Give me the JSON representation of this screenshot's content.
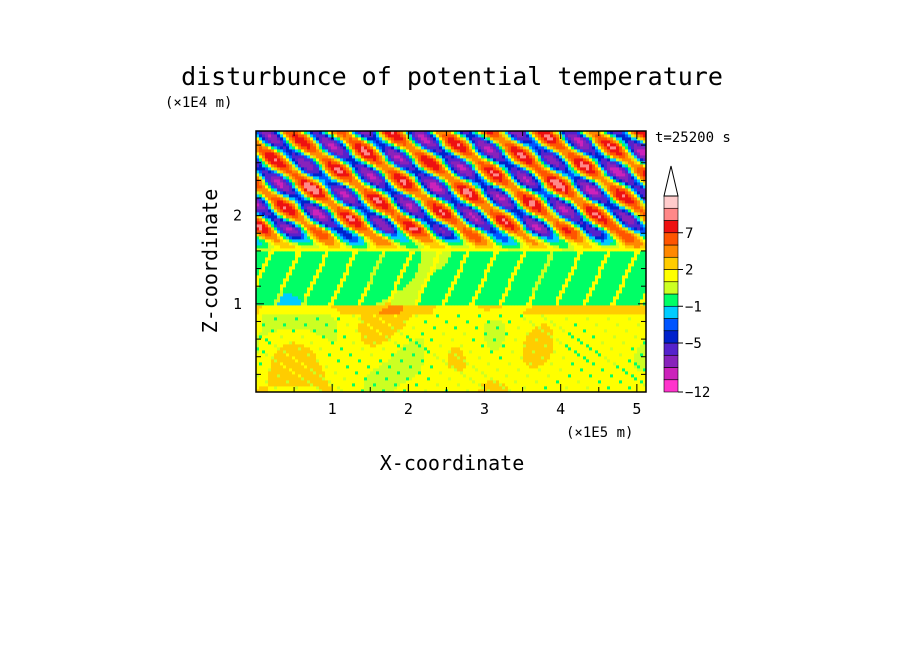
{
  "chart_data": {
    "type": "heatmap",
    "title": "disturbunce of potential temperature",
    "xlabel": "X-coordinate",
    "ylabel": "Z-coordinate",
    "x_unit": "(×1E5 m)",
    "y_unit": "(×1E4 m)",
    "time_label": "t=25200 s",
    "xlim": [
      0,
      5.12
    ],
    "ylim": [
      0,
      2.96
    ],
    "x_ticks": [
      1,
      2,
      3,
      4,
      5
    ],
    "y_ticks": [
      1,
      2
    ],
    "colorbar": {
      "levels": [
        -12,
        -11,
        -9,
        -7,
        -5,
        -4,
        -3,
        -1,
        0,
        1,
        2,
        3,
        5,
        7,
        9,
        11
      ],
      "tick_labels": [
        "7",
        "2",
        "−1",
        "−5",
        "−12"
      ],
      "tick_values": [
        7,
        2,
        -1,
        -5,
        -12
      ],
      "colors": [
        "#ff33cc",
        "#cc22bb",
        "#8822bb",
        "#5522cc",
        "#0022cc",
        "#0055ff",
        "#00ccff",
        "#00ff66",
        "#ccff22",
        "#ffff00",
        "#ffcc00",
        "#ff8800",
        "#ff5500",
        "#ee1111",
        "#ff8888",
        "#ffcccc"
      ],
      "extend_max": true
    },
    "layers_description": [
      {
        "z_range": [
          0.0,
          0.9
        ],
        "dominant_value": 1.5
      },
      {
        "z_range": [
          0.9,
          1.0
        ],
        "dominant_value": 2.2
      },
      {
        "z_range": [
          1.0,
          1.6
        ],
        "dominant_value": -0.5
      },
      {
        "z_range": [
          1.6,
          2.96
        ],
        "dominant_value": "oscillating -8 to 8"
      }
    ]
  }
}
